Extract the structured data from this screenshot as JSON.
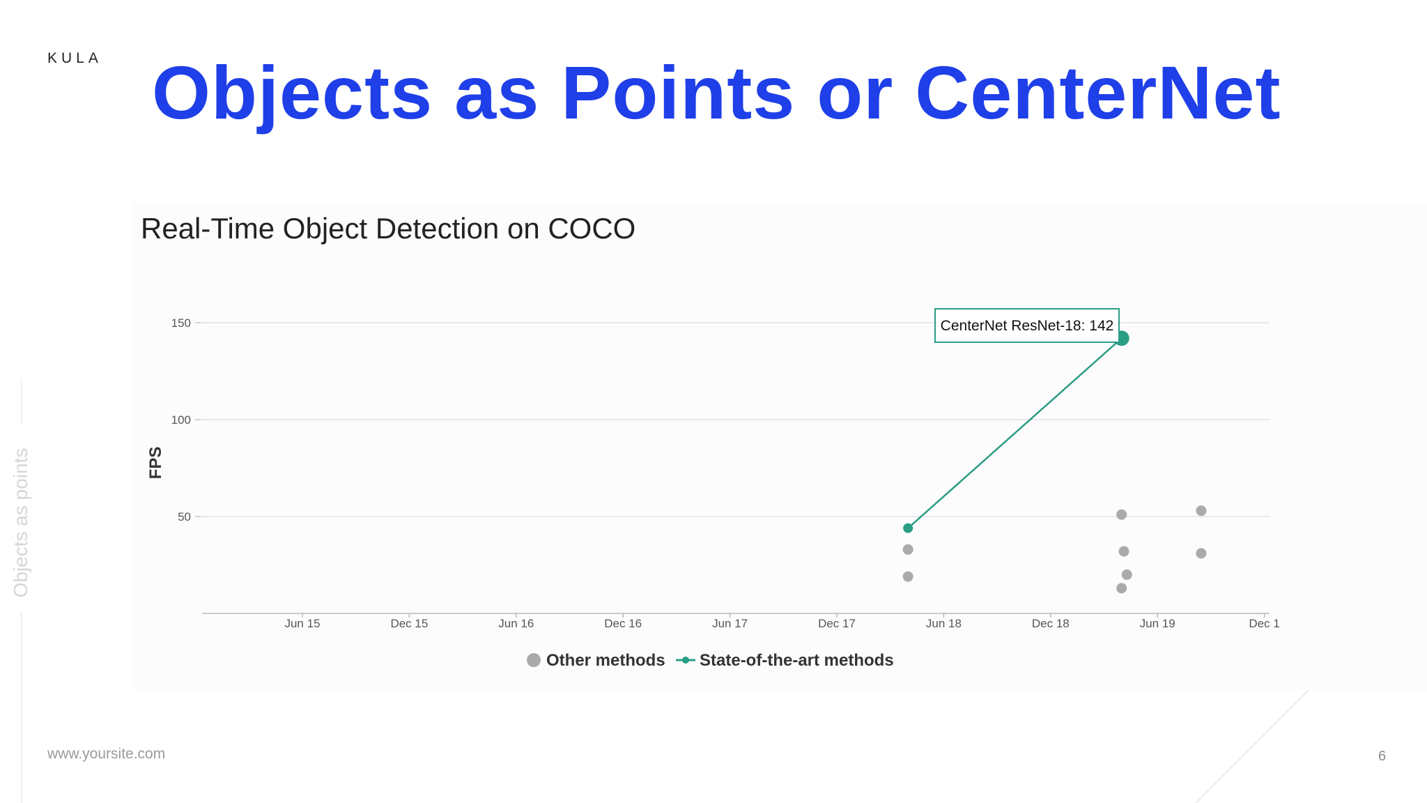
{
  "brand": "KULA",
  "slide_title": "Objects as Points or CenterNet",
  "side_label": "Objects as points",
  "footer": {
    "site": "www.yoursite.com",
    "page": "6"
  },
  "colors": {
    "title": "#1f3fe8",
    "sota": "#2a9d85",
    "other": "#aaaaaa",
    "grid": "#e4e2e8"
  },
  "chart_data": {
    "type": "scatter",
    "title": "Real-Time Object Detection on COCO",
    "ylabel": "FPS",
    "ylim": [
      0,
      150
    ],
    "y_ticks": [
      50,
      100,
      150
    ],
    "x_ticks": [
      "Jun 15",
      "Dec 15",
      "Jun 16",
      "Dec 16",
      "Jun 17",
      "Dec 17",
      "Jun 18",
      "Dec 18",
      "Jun 19",
      "Dec 1"
    ],
    "legend": {
      "position": "bottom",
      "entries": [
        "Other methods",
        "State-of-the-art methods"
      ]
    },
    "series": [
      {
        "name": "Other methods",
        "points": [
          {
            "x": "2018-04-01",
            "y": 33
          },
          {
            "x": "2018-04-01",
            "y": 19
          },
          {
            "x": "2019-04-01",
            "y": 51
          },
          {
            "x": "2019-04-05",
            "y": 32
          },
          {
            "x": "2019-04-10",
            "y": 20
          },
          {
            "x": "2019-04-01",
            "y": 13
          },
          {
            "x": "2019-08-15",
            "y": 53
          },
          {
            "x": "2019-08-15",
            "y": 31
          }
        ]
      },
      {
        "name": "State-of-the-art methods",
        "points": [
          {
            "x": "2018-04-01",
            "y": 44
          },
          {
            "x": "2019-04-01",
            "y": 142
          }
        ]
      }
    ],
    "annotation": {
      "text": "CenterNet ResNet-18: 142",
      "x": "2019-04-01",
      "y": 142
    }
  }
}
